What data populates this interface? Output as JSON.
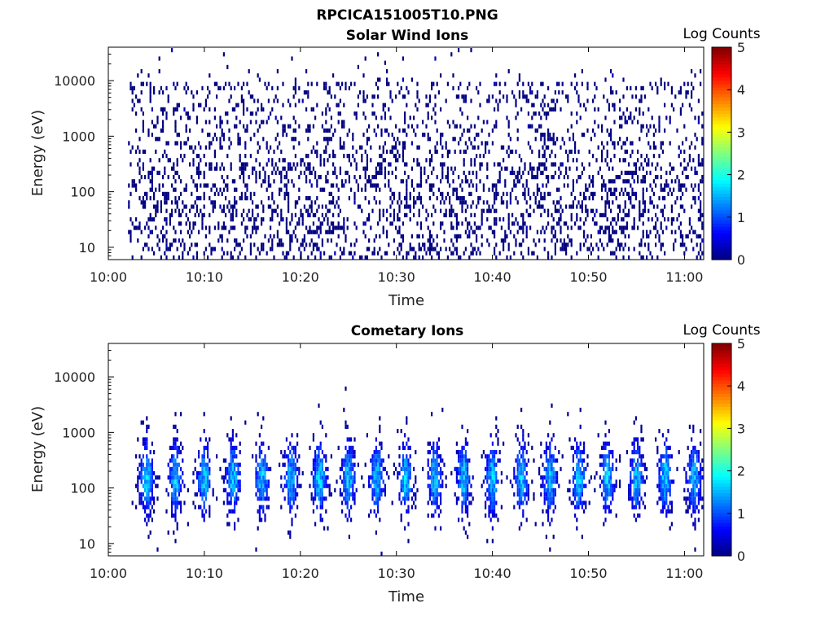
{
  "figure": {
    "title": "RPCICA151005T10.PNG"
  },
  "chart_data": [
    {
      "type": "heatmap",
      "title": "Solar Wind Ions",
      "xlabel": "Time",
      "ylabel": "Energy (eV)",
      "x_ticks": [
        "10:00",
        "10:10",
        "10:20",
        "10:30",
        "10:40",
        "10:50",
        "11:00"
      ],
      "xlim": [
        "10:00",
        "11:02"
      ],
      "y_scale": "log",
      "y_ticks": [
        10,
        100,
        1000,
        10000
      ],
      "ylim": [
        6,
        40000
      ],
      "colorbar": {
        "label": "Log Counts",
        "ticks": [
          0,
          1,
          2,
          3,
          4,
          5
        ],
        "range": [
          0,
          5
        ],
        "colormap": "jet"
      },
      "pattern": "sparse single-count (log counts ~0) speckle across 10:02–11:02, denser below 300 eV",
      "level_log_counts": 0
    },
    {
      "type": "heatmap",
      "title": "Cometary Ions",
      "xlabel": "Time",
      "ylabel": "Energy (eV)",
      "x_ticks": [
        "10:00",
        "10:10",
        "10:20",
        "10:30",
        "10:40",
        "10:50",
        "11:00"
      ],
      "xlim": [
        "10:00",
        "11:02"
      ],
      "y_scale": "log",
      "y_ticks": [
        10,
        100,
        1000,
        10000
      ],
      "ylim": [
        6,
        40000
      ],
      "colorbar": {
        "label": "Log Counts",
        "ticks": [
          0,
          1,
          2,
          3,
          4,
          5
        ],
        "range": [
          0,
          5
        ],
        "colormap": "jet"
      },
      "pattern": "periodic bursts roughly every 3 minutes between ~30 and ~700 eV, peaks near 150 eV",
      "burst_times": [
        "10:04",
        "10:07",
        "10:10",
        "10:13",
        "10:16",
        "10:19",
        "10:22",
        "10:25",
        "10:28",
        "10:31",
        "10:34",
        "10:37",
        "10:40",
        "10:43",
        "10:46",
        "10:49",
        "10:52",
        "10:55",
        "10:58",
        "11:01"
      ],
      "peak_energy_ev": 150,
      "peak_log_counts": 1.8
    }
  ]
}
